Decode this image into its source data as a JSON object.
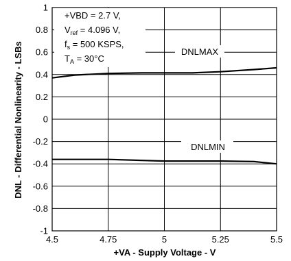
{
  "chart_data": {
    "type": "line",
    "title": "",
    "xlabel": "+VA - Supply Voltage - V",
    "ylabel": "DNL - Differential Nonlinearity - LSBs",
    "xlim": [
      4.5,
      5.5
    ],
    "ylim": [
      -1,
      1
    ],
    "x_ticks": [
      4.5,
      4.75,
      5,
      5.25,
      5.5
    ],
    "x_tick_labels": [
      "4.5",
      "4.75",
      "5",
      "5.25",
      "5.5"
    ],
    "y_ticks": [
      -1,
      -0.8,
      -0.6,
      -0.4,
      -0.2,
      0,
      0.2,
      0.4,
      0.6,
      0.8,
      1
    ],
    "y_tick_labels": [
      "-1",
      "-0.8",
      "-0.6",
      "-0.4",
      "-0.2",
      "0",
      "0.2",
      "0.4",
      "0.6",
      "0.8",
      "1"
    ],
    "grid": true,
    "conditions": {
      "vbd": "+VBD = 2.7 V,",
      "vref_main": "V",
      "vref_sub": "ref",
      "vref_rest": " = 4.096 V,",
      "fs_main": "f",
      "fs_sub": "s",
      "fs_rest": " = 500 KSPS,",
      "ta_main": "T",
      "ta_sub": "A",
      "ta_rest": " = 30°C"
    },
    "series": [
      {
        "name": "DNLMAX",
        "x": [
          4.5,
          4.6,
          4.75,
          4.9,
          5.0,
          5.125,
          5.25,
          5.4,
          5.5
        ],
        "y": [
          0.37,
          0.395,
          0.41,
          0.415,
          0.415,
          0.415,
          0.425,
          0.445,
          0.46
        ]
      },
      {
        "name": "DNLMIN",
        "x": [
          4.5,
          4.75,
          5.0,
          5.25,
          5.4,
          5.5
        ],
        "y": [
          -0.36,
          -0.36,
          -0.375,
          -0.375,
          -0.38,
          -0.4
        ]
      }
    ]
  }
}
